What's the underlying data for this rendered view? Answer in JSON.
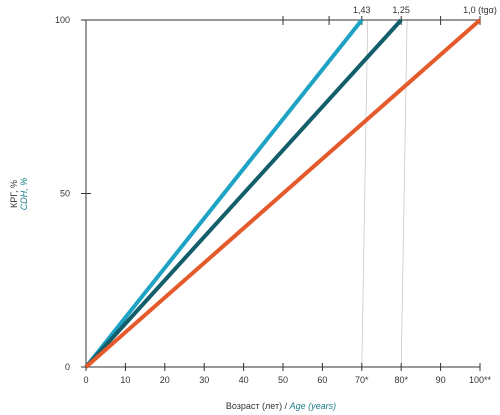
{
  "chart_data": {
    "type": "line",
    "xlabel_ru": "Возраст (лет)",
    "xlabel_sep": " / ",
    "xlabel_en": "Age (years)",
    "ylabel_ru": "КРГ, %",
    "ylabel_en": "CDH, %",
    "xlim": [
      0,
      100
    ],
    "ylim": [
      0,
      100
    ],
    "x_ticks": [
      0,
      10,
      20,
      30,
      40,
      50,
      60,
      70,
      80,
      90,
      100
    ],
    "x_tick_labels": [
      "0",
      "10",
      "20",
      "30",
      "40",
      "50",
      "60",
      "70*",
      "80*",
      "90",
      "100**"
    ],
    "y_ticks": [
      0,
      50,
      100
    ],
    "y_tick_labels": [
      "0",
      "50",
      "100"
    ],
    "top_ticks": [
      50,
      61.7,
      70,
      80,
      90,
      100
    ],
    "series": [
      {
        "color": "#1ea3c4",
        "points": [
          [
            0,
            0
          ],
          [
            70,
            100
          ]
        ],
        "top_label": "1,43"
      },
      {
        "color": "#135e6b",
        "points": [
          [
            0,
            0
          ],
          [
            80,
            100
          ]
        ],
        "top_label": "1,25"
      },
      {
        "color": "#e55a2b",
        "points": [
          [
            0,
            0
          ],
          [
            100,
            100
          ]
        ],
        "top_label": "1,0 (tgα)"
      }
    ],
    "guide_lines": [
      {
        "from": [
          70,
          0
        ],
        "to": [
          71.5,
          100
        ]
      },
      {
        "from": [
          80,
          0
        ],
        "to": [
          81.5,
          100
        ]
      }
    ],
    "colors": {
      "axis": "#333333",
      "guide": "#c8c8c8",
      "ylabel_en": "#1a7d8c",
      "xlabel_en": "#1a7d8c"
    }
  }
}
